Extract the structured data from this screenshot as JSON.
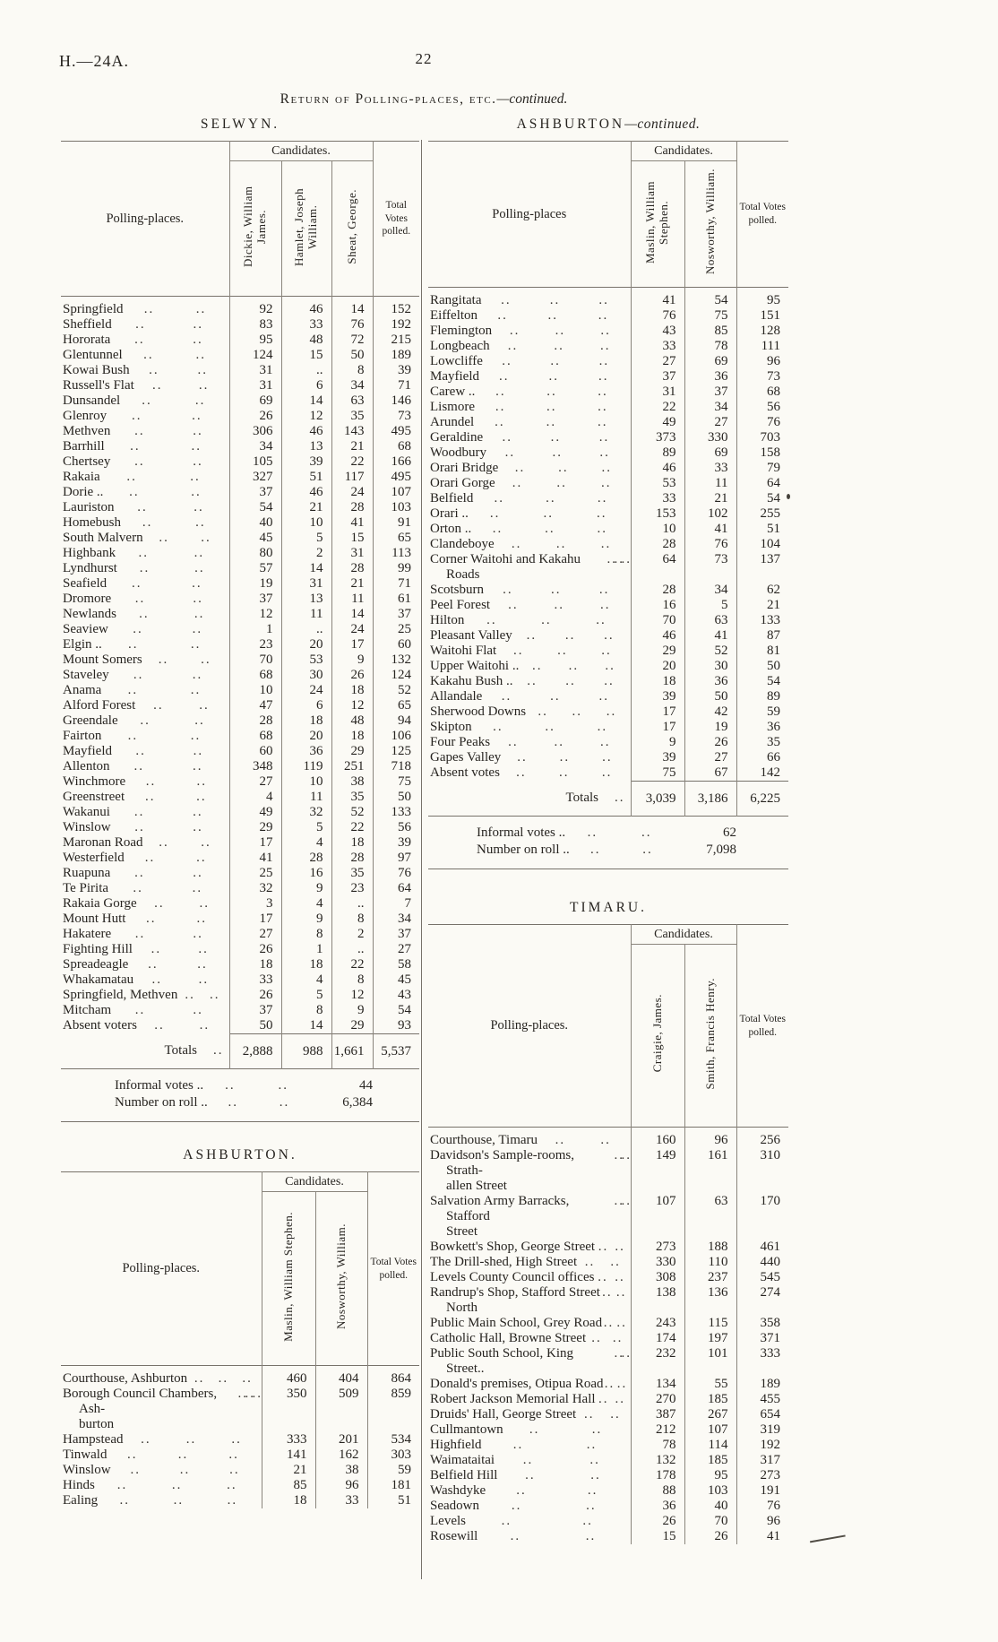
{
  "page": {
    "doc_ref": "H.—24A.",
    "page_number": "22",
    "title_main": "Return of Polling-places, etc.",
    "title_cont": "—continued.",
    "dots": ".."
  },
  "selwyn": {
    "heading": "SELWYN.",
    "polling_places_label": "Polling-places.",
    "candidates_label": "Candidates.",
    "total_label": "Total Votes polled.",
    "totals_row_label": "Totals",
    "candidates": [
      "Dickie, William James.",
      "Hamlet, Joseph William.",
      "Sheat, George."
    ],
    "rows": [
      [
        "Springfield",
        "92",
        "46",
        "14",
        "152"
      ],
      [
        "Sheffield",
        "83",
        "33",
        "76",
        "192"
      ],
      [
        "Hororata",
        "95",
        "48",
        "72",
        "215"
      ],
      [
        "Glentunnel",
        "124",
        "15",
        "50",
        "189"
      ],
      [
        "Kowai Bush",
        "31",
        "..",
        "8",
        "39"
      ],
      [
        "Russell's Flat",
        "31",
        "6",
        "34",
        "71"
      ],
      [
        "Dunsandel",
        "69",
        "14",
        "63",
        "146"
      ],
      [
        "Glenroy",
        "26",
        "12",
        "35",
        "73"
      ],
      [
        "Methven",
        "306",
        "46",
        "143",
        "495"
      ],
      [
        "Barrhill",
        "34",
        "13",
        "21",
        "68"
      ],
      [
        "Chertsey",
        "105",
        "39",
        "22",
        "166"
      ],
      [
        "Rakaia",
        "327",
        "51",
        "117",
        "495"
      ],
      [
        "Dorie ..",
        "37",
        "46",
        "24",
        "107"
      ],
      [
        "Lauriston",
        "54",
        "21",
        "28",
        "103"
      ],
      [
        "Homebush",
        "40",
        "10",
        "41",
        "91"
      ],
      [
        "South Malvern",
        "45",
        "5",
        "15",
        "65"
      ],
      [
        "Highbank",
        "80",
        "2",
        "31",
        "113"
      ],
      [
        "Lyndhurst",
        "57",
        "14",
        "28",
        "99"
      ],
      [
        "Seafield",
        "19",
        "31",
        "21",
        "71"
      ],
      [
        "Dromore",
        "37",
        "13",
        "11",
        "61"
      ],
      [
        "Newlands",
        "12",
        "11",
        "14",
        "37"
      ],
      [
        "Seaview",
        "1",
        "..",
        "24",
        "25"
      ],
      [
        "Elgin ..",
        "23",
        "20",
        "17",
        "60"
      ],
      [
        "Mount Somers",
        "70",
        "53",
        "9",
        "132"
      ],
      [
        "Staveley",
        "68",
        "30",
        "26",
        "124"
      ],
      [
        "Anama",
        "10",
        "24",
        "18",
        "52"
      ],
      [
        "Alford Forest",
        "47",
        "6",
        "12",
        "65"
      ],
      [
        "Greendale",
        "28",
        "18",
        "48",
        "94"
      ],
      [
        "Fairton",
        "68",
        "20",
        "18",
        "106"
      ],
      [
        "Mayfield",
        "60",
        "36",
        "29",
        "125"
      ],
      [
        "Allenton",
        "348",
        "119",
        "251",
        "718"
      ],
      [
        "Winchmore",
        "27",
        "10",
        "38",
        "75"
      ],
      [
        "Greenstreet",
        "4",
        "11",
        "35",
        "50"
      ],
      [
        "Wakanui",
        "49",
        "32",
        "52",
        "133"
      ],
      [
        "Winslow",
        "29",
        "5",
        "22",
        "56"
      ],
      [
        "Maronan Road",
        "17",
        "4",
        "18",
        "39"
      ],
      [
        "Westerfield",
        "41",
        "28",
        "28",
        "97"
      ],
      [
        "Ruapuna",
        "25",
        "16",
        "35",
        "76"
      ],
      [
        "Te Pirita",
        "32",
        "9",
        "23",
        "64"
      ],
      [
        "Rakaia Gorge",
        "3",
        "4",
        "..",
        "7"
      ],
      [
        "Mount Hutt",
        "17",
        "9",
        "8",
        "34"
      ],
      [
        "Hakatere",
        "27",
        "8",
        "2",
        "37"
      ],
      [
        "Fighting Hill",
        "26",
        "1",
        "..",
        "27"
      ],
      [
        "Spreadeagle",
        "18",
        "18",
        "22",
        "58"
      ],
      [
        "Whakamatau",
        "33",
        "4",
        "8",
        "45"
      ],
      [
        "Springfield, Methven",
        "26",
        "5",
        "12",
        "43"
      ],
      [
        "Mitcham",
        "37",
        "8",
        "9",
        "54"
      ],
      [
        "Absent voters",
        "50",
        "14",
        "29",
        "93"
      ]
    ],
    "totals": [
      "2,888",
      "988",
      "1,661",
      "5,537"
    ],
    "informal_label": "Informal votes ..",
    "informal_value": "44",
    "roll_label": "Number on roll ..",
    "roll_value": "6,384"
  },
  "ashburton": {
    "heading": "ASHBURTON.",
    "polling_places_label": "Polling-places.",
    "candidates_label": "Candidates.",
    "total_label": "Total Votes polled.",
    "candidates": [
      "Maslin, William Stephen.",
      "Nosworthy, William."
    ],
    "rows": [
      [
        "Courthouse, Ashburton",
        "460",
        "404",
        "864"
      ],
      [
        "Borough Council Chambers, Ash-\nburton",
        "350",
        "509",
        "859"
      ],
      [
        "Hampstead",
        "333",
        "201",
        "534"
      ],
      [
        "Tinwald",
        "141",
        "162",
        "303"
      ],
      [
        "Winslow",
        "21",
        "38",
        "59"
      ],
      [
        "Hinds",
        "85",
        "96",
        "181"
      ],
      [
        "Ealing",
        "18",
        "33",
        "51"
      ]
    ]
  },
  "ashburton_cont": {
    "heading": "ASHBURTON",
    "heading_cont": "—continued.",
    "polling_places_label": "Polling-places",
    "candidates_label": "Candidates.",
    "total_label": "Total Votes polled.",
    "totals_row_label": "Totals",
    "candidates": [
      "Maslin, William Stephen.",
      "Nosworthy, William."
    ],
    "rows": [
      [
        "Rangitata",
        "41",
        "54",
        "95"
      ],
      [
        "Eiffelton",
        "76",
        "75",
        "151"
      ],
      [
        "Flemington",
        "43",
        "85",
        "128"
      ],
      [
        "Longbeach",
        "33",
        "78",
        "111"
      ],
      [
        "Lowcliffe",
        "27",
        "69",
        "96"
      ],
      [
        "Mayfield",
        "37",
        "36",
        "73"
      ],
      [
        "Carew ..",
        "31",
        "37",
        "68"
      ],
      [
        "Lismore",
        "22",
        "34",
        "56"
      ],
      [
        "Arundel",
        "49",
        "27",
        "76"
      ],
      [
        "Geraldine",
        "373",
        "330",
        "703"
      ],
      [
        "Woodbury",
        "89",
        "69",
        "158"
      ],
      [
        "Orari Bridge",
        "46",
        "33",
        "79"
      ],
      [
        "Orari Gorge",
        "53",
        "11",
        "64"
      ],
      [
        "Belfield",
        "33",
        "21",
        "54"
      ],
      [
        "Orari ..",
        "153",
        "102",
        "255"
      ],
      [
        "Orton ..",
        "10",
        "41",
        "51"
      ],
      [
        "Clandeboye",
        "28",
        "76",
        "104"
      ],
      [
        "Corner Waitohi and Kakahu Roads",
        "64",
        "73",
        "137"
      ],
      [
        "Scotsburn",
        "28",
        "34",
        "62"
      ],
      [
        "Peel Forest",
        "16",
        "5",
        "21"
      ],
      [
        "Hilton",
        "70",
        "63",
        "133"
      ],
      [
        "Pleasant Valley",
        "46",
        "41",
        "87"
      ],
      [
        "Waitohi Flat",
        "29",
        "52",
        "81"
      ],
      [
        "Upper Waitohi ..",
        "20",
        "30",
        "50"
      ],
      [
        "Kakahu Bush ..",
        "18",
        "36",
        "54"
      ],
      [
        "Allandale",
        "39",
        "50",
        "89"
      ],
      [
        "Sherwood Downs",
        "17",
        "42",
        "59"
      ],
      [
        "Skipton",
        "17",
        "19",
        "36"
      ],
      [
        "Four Peaks",
        "9",
        "26",
        "35"
      ],
      [
        "Gapes Valley",
        "39",
        "27",
        "66"
      ],
      [
        "Absent votes",
        "75",
        "67",
        "142"
      ]
    ],
    "totals": [
      "3,039",
      "3,186",
      "6,225"
    ],
    "informal_label": "Informal votes ..",
    "informal_value": "62",
    "roll_label": "Number on roll ..",
    "roll_value": "7,098"
  },
  "timaru": {
    "heading": "TIMARU.",
    "polling_places_label": "Polling-places.",
    "candidates_label": "Candidates.",
    "total_label": "Total Votes polled.",
    "candidates": [
      "Craigie, James.",
      "Smith, Francis Henry."
    ],
    "rows": [
      [
        "Courthouse, Timaru",
        "160",
        "96",
        "256"
      ],
      [
        "Davidson's Sample-rooms, Strath-\nallen Street",
        "149",
        "161",
        "310"
      ],
      [
        "Salvation Army Barracks, Stafford\nStreet",
        "107",
        "63",
        "170"
      ],
      [
        "Bowkett's Shop, George Street",
        "273",
        "188",
        "461"
      ],
      [
        "The Drill-shed, High Street",
        "330",
        "110",
        "440"
      ],
      [
        "Levels County Council offices",
        "308",
        "237",
        "545"
      ],
      [
        "Randrup's Shop, Stafford Street\nNorth",
        "138",
        "136",
        "274"
      ],
      [
        "Public Main School, Grey Road",
        "243",
        "115",
        "358"
      ],
      [
        "Catholic Hall, Browne Street",
        "174",
        "197",
        "371"
      ],
      [
        "Public South School, King Street..",
        "232",
        "101",
        "333"
      ],
      [
        "Donald's premises, Otipua Road",
        "134",
        "55",
        "189"
      ],
      [
        "Robert Jackson Memorial Hall",
        "270",
        "185",
        "455"
      ],
      [
        "Druids' Hall, George Street",
        "387",
        "267",
        "654"
      ],
      [
        "Cullmantown",
        "212",
        "107",
        "319"
      ],
      [
        "Highfield",
        "78",
        "114",
        "192"
      ],
      [
        "Waimataitai",
        "132",
        "185",
        "317"
      ],
      [
        "Belfield Hill",
        "178",
        "95",
        "273"
      ],
      [
        "Washdyke",
        "88",
        "103",
        "191"
      ],
      [
        "Seadown",
        "36",
        "40",
        "76"
      ],
      [
        "Levels",
        "26",
        "70",
        "96"
      ],
      [
        "Rosewill",
        "15",
        "26",
        "41"
      ]
    ]
  }
}
